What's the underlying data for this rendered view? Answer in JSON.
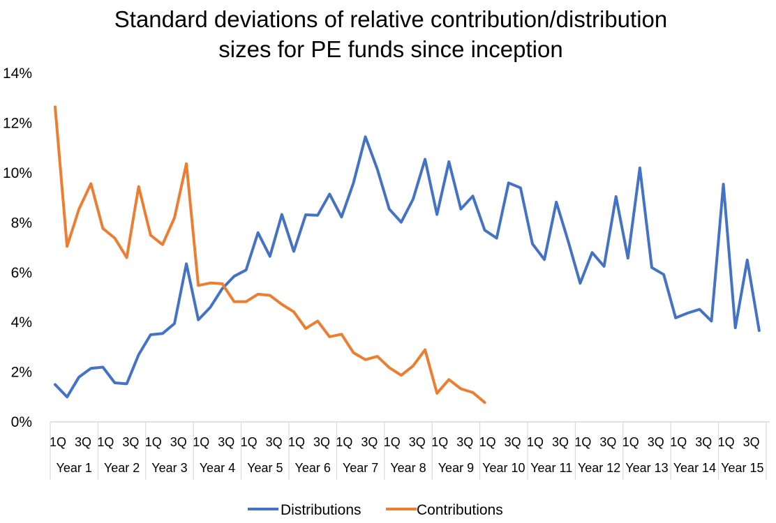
{
  "chart_data": {
    "type": "line",
    "title_lines": [
      "Standard deviations of relative contribution/distribution",
      "sizes for PE funds since inception"
    ],
    "y_ticks": [
      "0%",
      "2%",
      "4%",
      "6%",
      "8%",
      "10%",
      "12%",
      "14%"
    ],
    "ylim": [
      0,
      14
    ],
    "y_unit": "%",
    "grid": false,
    "legend_position": "bottom",
    "quarter_labels": [
      "1Q",
      "3Q"
    ],
    "years": [
      "Year 1",
      "Year 2",
      "Year 3",
      "Year 4",
      "Year 5",
      "Year 6",
      "Year 7",
      "Year 8",
      "Year 9",
      "Year 10",
      "Year 11",
      "Year 12",
      "Year 13",
      "Year 14",
      "Year 15"
    ],
    "quarters_per_year": 4,
    "series": [
      {
        "name": "Distributions",
        "color": "#4472C4",
        "values": [
          1.5,
          1.0,
          1.8,
          2.15,
          2.2,
          1.57,
          1.53,
          2.7,
          3.5,
          3.55,
          3.95,
          6.35,
          4.1,
          4.6,
          5.35,
          5.85,
          6.1,
          7.6,
          6.65,
          8.33,
          6.85,
          8.32,
          8.3,
          9.15,
          8.23,
          9.6,
          11.45,
          10.15,
          8.55,
          8.02,
          8.95,
          10.55,
          8.33,
          10.45,
          8.55,
          9.07,
          7.7,
          7.38,
          9.6,
          9.4,
          7.15,
          6.52,
          8.83,
          7.25,
          5.57,
          6.8,
          6.25,
          9.05,
          6.58,
          10.2,
          6.2,
          5.92,
          4.18,
          4.37,
          4.52,
          4.05,
          9.55,
          3.78,
          6.5,
          3.67
        ]
      },
      {
        "name": "Contributions",
        "color": "#ED7D31",
        "values": [
          12.65,
          7.05,
          8.55,
          9.57,
          7.77,
          7.38,
          6.6,
          9.45,
          7.5,
          7.12,
          8.2,
          10.37,
          5.48,
          5.58,
          5.55,
          4.83,
          4.83,
          5.13,
          5.08,
          4.72,
          4.42,
          3.75,
          4.05,
          3.42,
          3.52,
          2.78,
          2.5,
          2.63,
          2.18,
          1.87,
          2.25,
          2.9,
          1.15,
          1.7,
          1.33,
          1.18,
          0.78
        ]
      }
    ]
  }
}
